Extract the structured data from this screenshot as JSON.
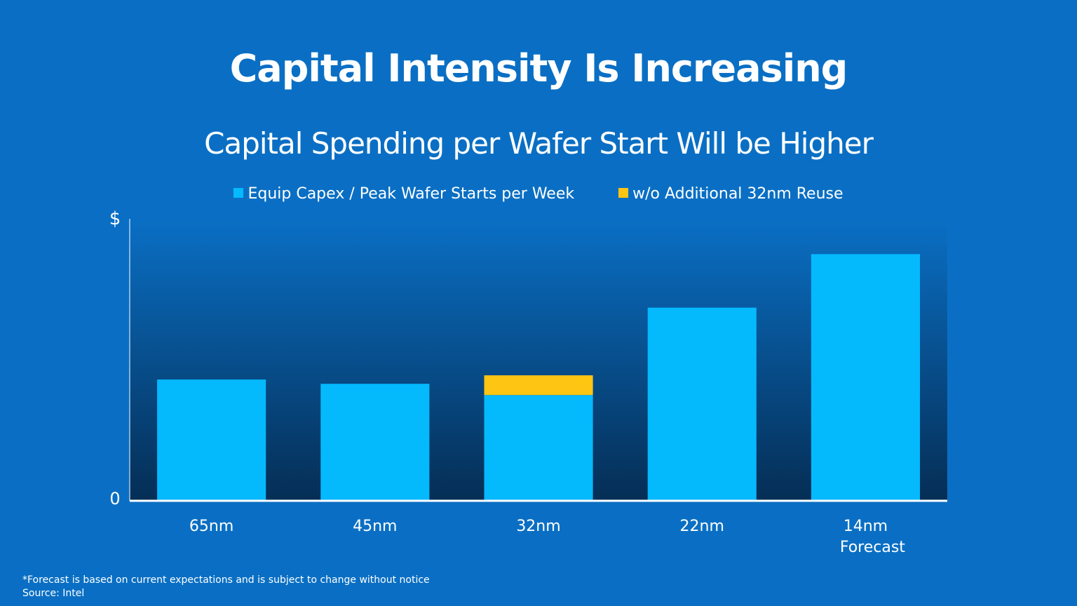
{
  "chart_data": {
    "type": "bar",
    "title": "Capital Intensity Is Increasing",
    "subtitle": "Capital Spending per Wafer Start Will be Higher",
    "ylabel": "$",
    "yticks": [
      "0",
      "$"
    ],
    "categories": [
      "65nm",
      "45nm",
      "32nm",
      "22nm",
      "14nm"
    ],
    "category_notes": [
      "",
      "",
      "",
      "",
      "Forecast"
    ],
    "ylim": [
      0,
      100
    ],
    "stacked": true,
    "grid": false,
    "legend_position": "top",
    "series": [
      {
        "name": "Equip Capex / Peak Wafer Starts per Week",
        "color": "#05b9fd",
        "values": [
          43,
          41.5,
          37.5,
          68.5,
          87.5
        ]
      },
      {
        "name": "w/o Additional 32nm Reuse",
        "color": "#fec513",
        "values": [
          0,
          0,
          7,
          0,
          0
        ]
      }
    ]
  },
  "footnotes": {
    "forecast_note": "*Forecast  is based on current expectations and is subject to change without notice",
    "source": "Source: Intel"
  },
  "colors": {
    "background": "#0a6fc4",
    "plot_gradient_top": "#0a6fc4",
    "plot_gradient_bottom": "#052e55",
    "axis": "#ffffff"
  }
}
